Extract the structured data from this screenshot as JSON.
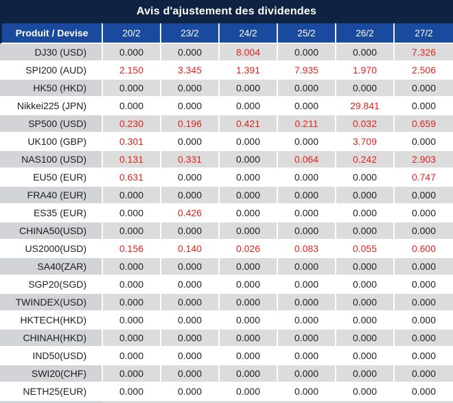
{
  "title": "Avis d'ajustement des dividendes",
  "table": {
    "product_header": "Produit / Devise",
    "date_headers": [
      "20/2",
      "23/2",
      "24/2",
      "25/2",
      "26/2",
      "27/2"
    ],
    "rows": [
      {
        "product": "DJ30 (USD)",
        "values": [
          "0.000",
          "0.000",
          "8.004",
          "0.000",
          "0.000",
          "7.326"
        ],
        "red": [
          false,
          false,
          true,
          false,
          false,
          true
        ]
      },
      {
        "product": "SPI200 (AUD)",
        "values": [
          "2.150",
          "3.345",
          "1.391",
          "7.935",
          "1.970",
          "2.506"
        ],
        "red": [
          true,
          true,
          true,
          true,
          true,
          true
        ]
      },
      {
        "product": "HK50 (HKD)",
        "values": [
          "0.000",
          "0.000",
          "0.000",
          "0.000",
          "0.000",
          "0.000"
        ],
        "red": [
          false,
          false,
          false,
          false,
          false,
          false
        ]
      },
      {
        "product": "Nikkei225 (JPN)",
        "values": [
          "0.000",
          "0.000",
          "0.000",
          "0.000",
          "29.841",
          "0.000"
        ],
        "red": [
          false,
          false,
          false,
          false,
          true,
          false
        ]
      },
      {
        "product": "SP500 (USD)",
        "values": [
          "0.230",
          "0.196",
          "0.421",
          "0.211",
          "0.032",
          "0.659"
        ],
        "red": [
          true,
          true,
          true,
          true,
          true,
          true
        ]
      },
      {
        "product": "UK100 (GBP)",
        "values": [
          "0.301",
          "0.000",
          "0.000",
          "0.000",
          "3.709",
          "0.000"
        ],
        "red": [
          true,
          false,
          false,
          false,
          true,
          false
        ]
      },
      {
        "product": "NAS100 (USD)",
        "values": [
          "0.131",
          "0.331",
          "0.000",
          "0.064",
          "0.242",
          "2.903"
        ],
        "red": [
          true,
          true,
          false,
          true,
          true,
          true
        ]
      },
      {
        "product": "EU50 (EUR)",
        "values": [
          "0.631",
          "0.000",
          "0.000",
          "0.000",
          "0.000",
          "0.747"
        ],
        "red": [
          true,
          false,
          false,
          false,
          false,
          true
        ]
      },
      {
        "product": "FRA40 (EUR)",
        "values": [
          "0.000",
          "0.000",
          "0.000",
          "0.000",
          "0.000",
          "0.000"
        ],
        "red": [
          false,
          false,
          false,
          false,
          false,
          false
        ]
      },
      {
        "product": "ES35 (EUR)",
        "values": [
          "0.000",
          "0.426",
          "0.000",
          "0.000",
          "0.000",
          "0.000"
        ],
        "red": [
          false,
          true,
          false,
          false,
          false,
          false
        ]
      },
      {
        "product": "CHINA50(USD)",
        "values": [
          "0.000",
          "0.000",
          "0.000",
          "0.000",
          "0.000",
          "0.000"
        ],
        "red": [
          false,
          false,
          false,
          false,
          false,
          false
        ]
      },
      {
        "product": "US2000(USD)",
        "values": [
          "0.156",
          "0.140",
          "0.026",
          "0.083",
          "0.055",
          "0.600"
        ],
        "red": [
          true,
          true,
          true,
          true,
          true,
          true
        ]
      },
      {
        "product": "SA40(ZAR)",
        "values": [
          "0.000",
          "0.000",
          "0.000",
          "0.000",
          "0.000",
          "0.000"
        ],
        "red": [
          false,
          false,
          false,
          false,
          false,
          false
        ]
      },
      {
        "product": "SGP20(SGD)",
        "values": [
          "0.000",
          "0.000",
          "0.000",
          "0.000",
          "0.000",
          "0.000"
        ],
        "red": [
          false,
          false,
          false,
          false,
          false,
          false
        ]
      },
      {
        "product": "TWINDEX(USD)",
        "values": [
          "0.000",
          "0.000",
          "0.000",
          "0.000",
          "0.000",
          "0.000"
        ],
        "red": [
          false,
          false,
          false,
          false,
          false,
          false
        ]
      },
      {
        "product": "HKTECH(HKD)",
        "values": [
          "0.000",
          "0.000",
          "0.000",
          "0.000",
          "0.000",
          "0.000"
        ],
        "red": [
          false,
          false,
          false,
          false,
          false,
          false
        ]
      },
      {
        "product": "CHINAH(HKD)",
        "values": [
          "0.000",
          "0.000",
          "0.000",
          "0.000",
          "0.000",
          "0.000"
        ],
        "red": [
          false,
          false,
          false,
          false,
          false,
          false
        ]
      },
      {
        "product": "IND50(USD)",
        "values": [
          "0.000",
          "0.000",
          "0.000",
          "0.000",
          "0.000",
          "0.000"
        ],
        "red": [
          false,
          false,
          false,
          false,
          false,
          false
        ]
      },
      {
        "product": "SWI20(CHF)",
        "values": [
          "0.000",
          "0.000",
          "0.000",
          "0.000",
          "0.000",
          "0.000"
        ],
        "red": [
          false,
          false,
          false,
          false,
          false,
          false
        ]
      },
      {
        "product": "NETH25(EUR)",
        "values": [
          "0.000",
          "0.000",
          "0.000",
          "0.000",
          "0.000",
          "0.000"
        ],
        "red": [
          false,
          false,
          false,
          false,
          false,
          false
        ]
      }
    ]
  },
  "colors": {
    "title_bg": "#0e2342",
    "header_bg": "#1a4a9e",
    "header_text": "#ffffff",
    "row_alt_label_bg": "#d2d4d7",
    "row_alt_value_bg": "#dcdcdd",
    "value_text": "#1d1d1d",
    "adjustment_red": "#e2231c"
  }
}
